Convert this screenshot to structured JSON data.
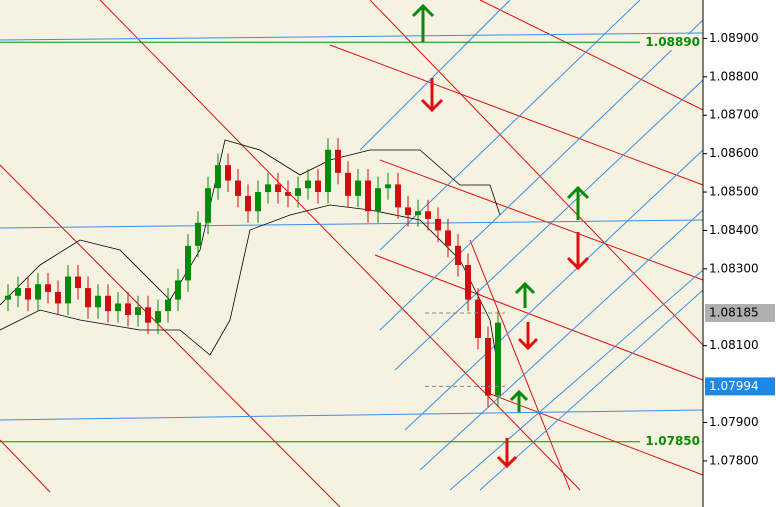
{
  "chart_data": {
    "type": "candlestick",
    "open": [
      1.0822,
      1.0823,
      1.0825,
      1.0822,
      1.0826,
      1.0824,
      1.0821,
      1.0828,
      1.0825,
      1.082,
      1.0823,
      1.0819,
      1.0821,
      1.0818,
      1.082,
      1.0816,
      1.0819,
      1.0822,
      1.0827,
      1.0836,
      1.0842,
      1.0851,
      1.0857,
      1.0853,
      1.0849,
      1.0845,
      1.085,
      1.0852,
      1.085,
      1.0849,
      1.0851,
      1.0853,
      1.085,
      1.0861,
      1.0855,
      1.0849,
      1.0853,
      1.0845,
      1.0851,
      1.0852,
      1.0846,
      1.0844,
      1.0845,
      1.0843,
      1.084,
      1.0836,
      1.0831,
      1.0822,
      1.0812,
      1.0797
    ],
    "high": [
      1.0826,
      1.0828,
      1.0828,
      1.0829,
      1.0829,
      1.0827,
      1.0831,
      1.0831,
      1.0828,
      1.0826,
      1.0826,
      1.0824,
      1.0824,
      1.0823,
      1.0823,
      1.0822,
      1.0825,
      1.083,
      1.0839,
      1.0845,
      1.0854,
      1.086,
      1.086,
      1.0856,
      1.0852,
      1.0853,
      1.0855,
      1.0855,
      1.0853,
      1.0854,
      1.0856,
      1.0856,
      1.0864,
      1.0864,
      1.0858,
      1.0856,
      1.0856,
      1.0854,
      1.0855,
      1.0855,
      1.0849,
      1.0848,
      1.0848,
      1.0846,
      1.0843,
      1.0839,
      1.0834,
      1.0825,
      1.0815,
      1.0819
    ],
    "low": [
      1.0819,
      1.082,
      1.0819,
      1.0819,
      1.0821,
      1.0818,
      1.0818,
      1.0822,
      1.0817,
      1.0817,
      1.0816,
      1.0816,
      1.0815,
      1.0815,
      1.0813,
      1.0813,
      1.0816,
      1.0819,
      1.0824,
      1.0833,
      1.0839,
      1.0848,
      1.085,
      1.0846,
      1.0842,
      1.0842,
      1.0847,
      1.0847,
      1.0846,
      1.0846,
      1.0848,
      1.0847,
      1.0847,
      1.0852,
      1.0846,
      1.0846,
      1.0842,
      1.0842,
      1.0848,
      1.0843,
      1.0841,
      1.0841,
      1.084,
      1.0837,
      1.0833,
      1.0828,
      1.0819,
      1.0809,
      1.0794,
      1.0794
    ],
    "close": [
      1.0823,
      1.0825,
      1.0822,
      1.0826,
      1.0824,
      1.0821,
      1.0828,
      1.0825,
      1.082,
      1.0823,
      1.0819,
      1.0821,
      1.0818,
      1.082,
      1.0816,
      1.0819,
      1.0822,
      1.0827,
      1.0836,
      1.0842,
      1.0851,
      1.0857,
      1.0853,
      1.0849,
      1.0845,
      1.085,
      1.0852,
      1.085,
      1.0849,
      1.0851,
      1.0853,
      1.085,
      1.0861,
      1.0855,
      1.0849,
      1.0853,
      1.0845,
      1.0851,
      1.0852,
      1.0846,
      1.0844,
      1.0845,
      1.0843,
      1.084,
      1.0836,
      1.0831,
      1.0822,
      1.0812,
      1.0797,
      1.0816
    ],
    "up_color": "#0a8a0a",
    "down_color": "#d01010",
    "ylim": [
      1.0768,
      1.09
    ],
    "yticks": [
      {
        "value": 1.089,
        "label": "1.08900"
      },
      {
        "value": 1.088,
        "label": "1.08800"
      },
      {
        "value": 1.087,
        "label": "1.08700"
      },
      {
        "value": 1.086,
        "label": "1.08600"
      },
      {
        "value": 1.085,
        "label": "1.08500"
      },
      {
        "value": 1.084,
        "label": "1.08400"
      },
      {
        "value": 1.083,
        "label": "1.08300"
      },
      {
        "value": 1.081,
        "label": "1.08100"
      },
      {
        "value": 1.079,
        "label": "1.07900"
      },
      {
        "value": 1.078,
        "label": "1.07800"
      }
    ],
    "levels": [
      {
        "value": 1.0889,
        "label": "1.08890",
        "color": "#0a8a0a"
      },
      {
        "value": 1.0785,
        "label": "1.07850",
        "color": "#0a8a0a"
      }
    ],
    "price_tags": [
      {
        "value": 1.08185,
        "label": "1.08185",
        "color": "#b0b0b0"
      },
      {
        "value": 1.07994,
        "label": "1.07994",
        "color": "#1e88e5"
      }
    ]
  }
}
